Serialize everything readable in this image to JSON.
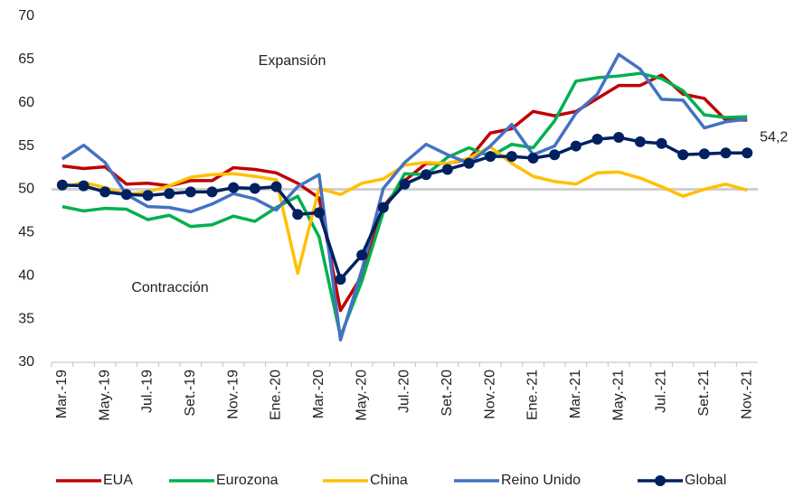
{
  "chart_data": {
    "type": "line",
    "annotations": [
      "Expansión",
      "Contracción"
    ],
    "categories": [
      "Mar.-19",
      null,
      "May.-19",
      null,
      "Jul.-19",
      null,
      "Set.-19",
      null,
      "Nov.-19",
      null,
      "Ene.-20",
      null,
      "Mar.-20",
      null,
      "May.-20",
      null,
      "Jul.-20",
      null,
      "Set.-20",
      null,
      "Nov.-20",
      null,
      "Ene.-21",
      null,
      "Mar.-21",
      null,
      "May.-21",
      null,
      "Jul.-21",
      null,
      "Set.-21",
      null,
      "Nov.-21"
    ],
    "series": [
      {
        "name": "EUA",
        "color": "#c00000",
        "values": [
          52.7,
          52.4,
          52.6,
          50.6,
          50.7,
          50.4,
          51.0,
          51.0,
          52.5,
          52.3,
          51.9,
          50.7,
          49.0,
          36.0,
          40.0,
          48.0,
          51.0,
          53.0,
          53.0,
          53.5,
          56.5,
          57.0,
          59.0,
          58.5,
          59.0,
          60.5,
          62.0,
          62.0,
          63.2,
          61.0,
          60.5,
          58.0,
          58.0
        ]
      },
      {
        "name": "Eurozona",
        "color": "#00b050",
        "values": [
          48.0,
          47.5,
          47.8,
          47.7,
          46.5,
          47.0,
          45.7,
          45.9,
          46.9,
          46.3,
          47.9,
          49.2,
          44.5,
          33.0,
          39.4,
          47.4,
          51.8,
          51.7,
          53.7,
          54.8,
          53.8,
          55.2,
          54.8,
          57.9,
          62.5,
          62.9,
          63.1,
          63.4,
          62.8,
          61.4,
          58.6,
          58.3,
          58.4
        ]
      },
      {
        "name": "China",
        "color": "#ffc000",
        "values": [
          50.2,
          50.8,
          50.2,
          49.4,
          49.7,
          50.4,
          51.4,
          51.7,
          51.8,
          51.5,
          51.1,
          40.3,
          50.1,
          49.4,
          50.7,
          51.2,
          52.8,
          53.1,
          53.0,
          53.6,
          54.9,
          53.0,
          51.5,
          50.9,
          50.6,
          51.9,
          52.0,
          51.3,
          50.3,
          49.2,
          50.0,
          50.6,
          49.9
        ]
      },
      {
        "name": "Reino Unido",
        "color": "#4472c4",
        "values": [
          53.5,
          55.1,
          53.1,
          49.4,
          48.0,
          47.9,
          47.4,
          48.3,
          49.5,
          48.9,
          47.6,
          50.3,
          51.7,
          32.6,
          40.7,
          50.1,
          53.1,
          55.2,
          54.0,
          53.0,
          55.0,
          57.5,
          54.0,
          55.0,
          58.8,
          61.0,
          65.6,
          63.9,
          60.4,
          60.3,
          57.1,
          57.8,
          58.1
        ]
      },
      {
        "name": "Global",
        "color": "#002060",
        "markers": true,
        "values": [
          50.5,
          50.4,
          49.7,
          49.4,
          49.3,
          49.5,
          49.7,
          49.7,
          50.2,
          50.1,
          50.3,
          47.1,
          47.3,
          39.6,
          42.4,
          47.9,
          50.6,
          51.7,
          52.3,
          53.0,
          53.8,
          53.8,
          53.6,
          54.0,
          55.0,
          55.8,
          56.0,
          55.5,
          55.3,
          54.0,
          54.1,
          54.2,
          54.2
        ],
        "value_labels": [
          null,
          null,
          null,
          null,
          null,
          null,
          null,
          null,
          null,
          null,
          null,
          null,
          null,
          null,
          null,
          null,
          null,
          null,
          null,
          null,
          null,
          null,
          null,
          null,
          null,
          null,
          null,
          null,
          null,
          null,
          null,
          null,
          "54,2"
        ]
      }
    ],
    "reference_line": 50,
    "ylim": [
      30,
      70
    ],
    "yticks": [
      30,
      35,
      40,
      45,
      50,
      55,
      60,
      65,
      70
    ],
    "grid": false,
    "legend": "bottom"
  }
}
